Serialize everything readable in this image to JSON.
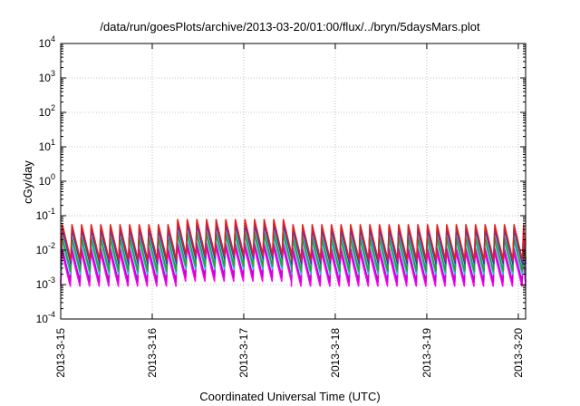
{
  "chart_data": {
    "type": "line",
    "title": "/data/run/goesPlots/archive/2013-03-20/01:00/flux/../bryn/5daysMars.plot",
    "xlabel": "Coordinated Universal Time (UTC)",
    "ylabel": "cGy/day",
    "yscale": "log",
    "ylim": [
      0.0001,
      10000
    ],
    "xlim": [
      "2013-03-15",
      "2013-03-20"
    ],
    "grid": true,
    "legend": "none",
    "x_ticks": [
      "2013-3-15",
      "2013-3-16",
      "2013-3-17",
      "2013-3-18",
      "2013-3-19",
      "2013-3-20"
    ],
    "y_ticks": [
      {
        "value": 0.0001,
        "base": "10",
        "exp": "-4"
      },
      {
        "value": 0.001,
        "base": "10",
        "exp": "-3"
      },
      {
        "value": 0.01,
        "base": "10",
        "exp": "-2"
      },
      {
        "value": 0.1,
        "base": "10",
        "exp": "-1"
      },
      {
        "value": 1,
        "base": "10",
        "exp": "0"
      },
      {
        "value": 10,
        "base": "10",
        "exp": "1"
      },
      {
        "value": 100,
        "base": "10",
        "exp": "2"
      },
      {
        "value": 1000,
        "base": "10",
        "exp": "3"
      },
      {
        "value": 10000,
        "base": "10",
        "exp": "4"
      }
    ],
    "sawtooth_period_days": 0.105,
    "series": [
      {
        "color": "#ff00ff",
        "peak": 0.009,
        "trough": 0.0009
      },
      {
        "color": "#cc00cc",
        "peak": 0.012,
        "trough": 0.0012
      },
      {
        "color": "#00d0d0",
        "peak": 0.02,
        "trough": 0.002
      },
      {
        "color": "#2aa02a",
        "peak": 0.025,
        "trough": 0.0025
      },
      {
        "color": "#1f3fe0",
        "peak": 0.04,
        "trough": 0.004
      },
      {
        "color": "#e02020",
        "peak": 0.055,
        "trough": 0.005
      }
    ],
    "enhancement_window": {
      "start": "2013-03-16T04:00",
      "end": "2013-03-17T12:00",
      "factor": 1.4
    }
  }
}
